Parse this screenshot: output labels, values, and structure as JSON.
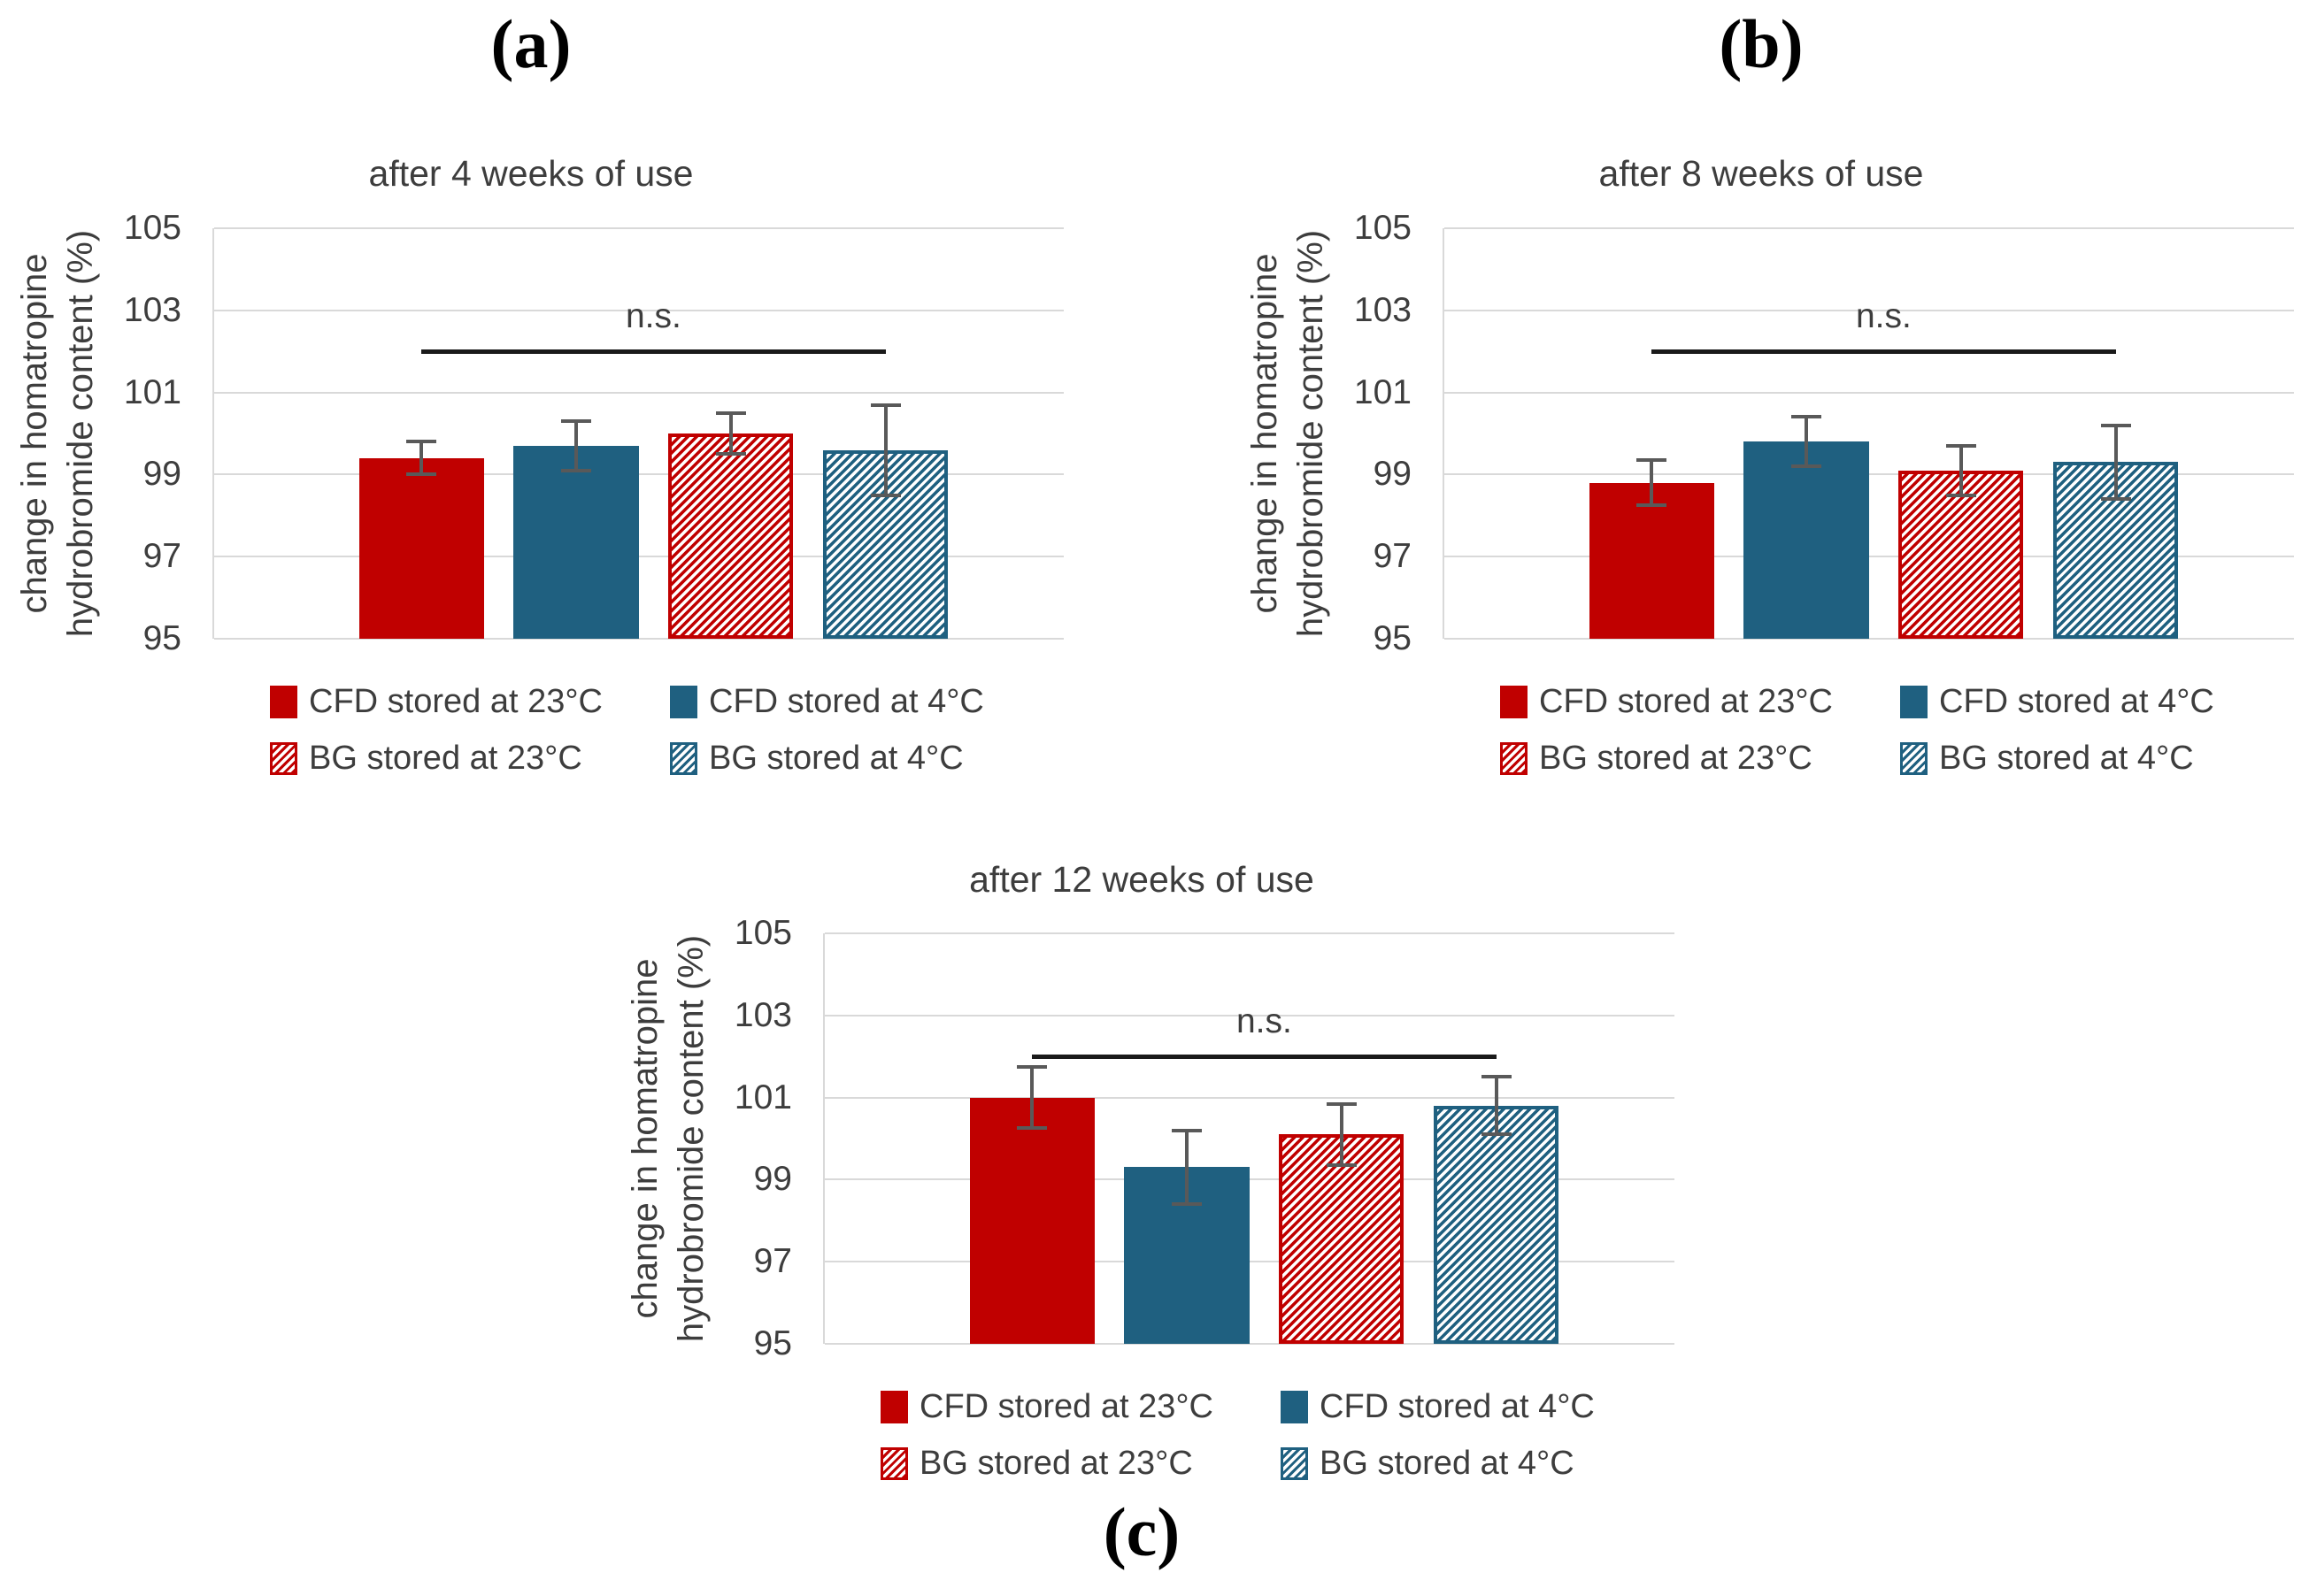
{
  "figure": {
    "colors": {
      "cfd_red": "#c00000",
      "cfd_blue": "#1f6080",
      "error_bar": "#595959",
      "gridline": "#d9d9d9",
      "annotation_line": "#1a1a1a",
      "text": "#3d3d3d"
    },
    "legend_items": [
      {
        "key": "cfd-23c",
        "label": "CFD stored at 23°C",
        "style": "red-solid"
      },
      {
        "key": "cfd-4c",
        "label": "CFD stored at 4°C",
        "style": "blue-solid"
      },
      {
        "key": "bg-23c",
        "label": "BG stored at 23°C",
        "style": "red-hatch"
      },
      {
        "key": "bg-4c",
        "label": "BG stored at 4°C",
        "style": "blue-hatch"
      }
    ]
  },
  "chart_data": [
    {
      "type": "bar",
      "panel_label": "(a)",
      "title": "after 4 weeks of use",
      "ylabel_lines": [
        "change in homatropine",
        "hydrobromide content (%)"
      ],
      "ylim": [
        95,
        105
      ],
      "yticks": [
        95,
        97,
        99,
        101,
        103,
        105
      ],
      "categories": [
        "CFD stored at 23°C",
        "CFD stored at 4°C",
        "BG stored at 23°C",
        "BG stored at 4°C"
      ],
      "series_styles": [
        "red-solid",
        "blue-solid",
        "red-hatch",
        "blue-hatch"
      ],
      "values": [
        99.4,
        99.7,
        100.0,
        99.6
      ],
      "errors": [
        0.4,
        0.6,
        0.5,
        1.1
      ],
      "annotation": {
        "text": "n.s.",
        "y": 102,
        "from_bar": 0,
        "to_bar": 3
      },
      "legend_position": "bottom"
    },
    {
      "type": "bar",
      "panel_label": "(b)",
      "title": "after 8 weeks of use",
      "ylabel_lines": [
        "change in homatropine",
        "hydrobromide content (%)"
      ],
      "ylim": [
        95,
        105
      ],
      "yticks": [
        95,
        97,
        99,
        101,
        103,
        105
      ],
      "categories": [
        "CFD stored at 23°C",
        "CFD stored at 4°C",
        "BG stored at 23°C",
        "BG stored at 4°C"
      ],
      "series_styles": [
        "red-solid",
        "blue-solid",
        "red-hatch",
        "blue-hatch"
      ],
      "values": [
        98.8,
        99.8,
        99.1,
        99.3
      ],
      "errors": [
        0.55,
        0.6,
        0.6,
        0.9
      ],
      "annotation": {
        "text": "n.s.",
        "y": 102,
        "from_bar": 0,
        "to_bar": 3
      },
      "legend_position": "bottom"
    },
    {
      "type": "bar",
      "panel_label": "(c)",
      "title": "after 12 weeks of use",
      "ylabel_lines": [
        "change in homatropine",
        "hydrobromide content (%)"
      ],
      "ylim": [
        95,
        105
      ],
      "yticks": [
        95,
        97,
        99,
        101,
        103,
        105
      ],
      "categories": [
        "CFD stored at 23°C",
        "CFD stored at 4°C",
        "BG stored at 23°C",
        "BG stored at 4°C"
      ],
      "series_styles": [
        "red-solid",
        "blue-solid",
        "red-hatch",
        "blue-hatch"
      ],
      "values": [
        101.0,
        99.3,
        100.1,
        100.8
      ],
      "errors": [
        0.75,
        0.9,
        0.75,
        0.7
      ],
      "annotation": {
        "text": "n.s.",
        "y": 102,
        "from_bar": 0,
        "to_bar": 3
      },
      "legend_position": "bottom"
    }
  ]
}
